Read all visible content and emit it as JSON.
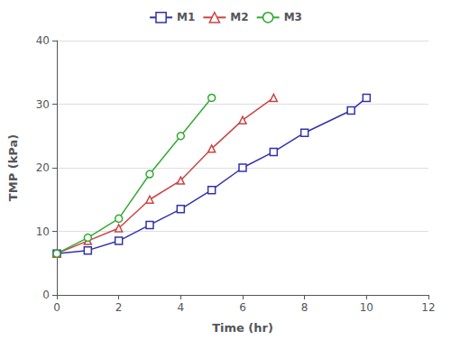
{
  "chart_data": {
    "type": "line",
    "xlabel": "Time (hr)",
    "ylabel": "TMP (kPa)",
    "series": [
      {
        "name": "M1",
        "color": "#3333aa",
        "marker": "square",
        "x": [
          0,
          1,
          2,
          3,
          4,
          5,
          6,
          7,
          8,
          9.5,
          10
        ],
        "values": [
          6.5,
          7.0,
          8.5,
          11.0,
          13.5,
          16.5,
          20.0,
          22.5,
          25.5,
          29.0,
          31.0
        ]
      },
      {
        "name": "M2",
        "color": "#cc4444",
        "marker": "triangle",
        "x": [
          0,
          1,
          2,
          3,
          4,
          5,
          6,
          7
        ],
        "values": [
          6.5,
          8.5,
          10.5,
          15.0,
          18.0,
          23.0,
          27.5,
          31.0
        ]
      },
      {
        "name": "M3",
        "color": "#33aa33",
        "marker": "circle",
        "x": [
          0,
          1,
          2,
          3,
          4,
          5
        ],
        "values": [
          6.5,
          9.0,
          12.0,
          19.0,
          25.0,
          31.0
        ]
      }
    ],
    "xlim": [
      0,
      12
    ],
    "ylim": [
      0,
      40
    ],
    "xticks": [
      0,
      2,
      4,
      6,
      8,
      10,
      12
    ],
    "yticks": [
      0,
      10,
      20,
      30,
      40
    ],
    "grid": true,
    "legend": "top"
  }
}
